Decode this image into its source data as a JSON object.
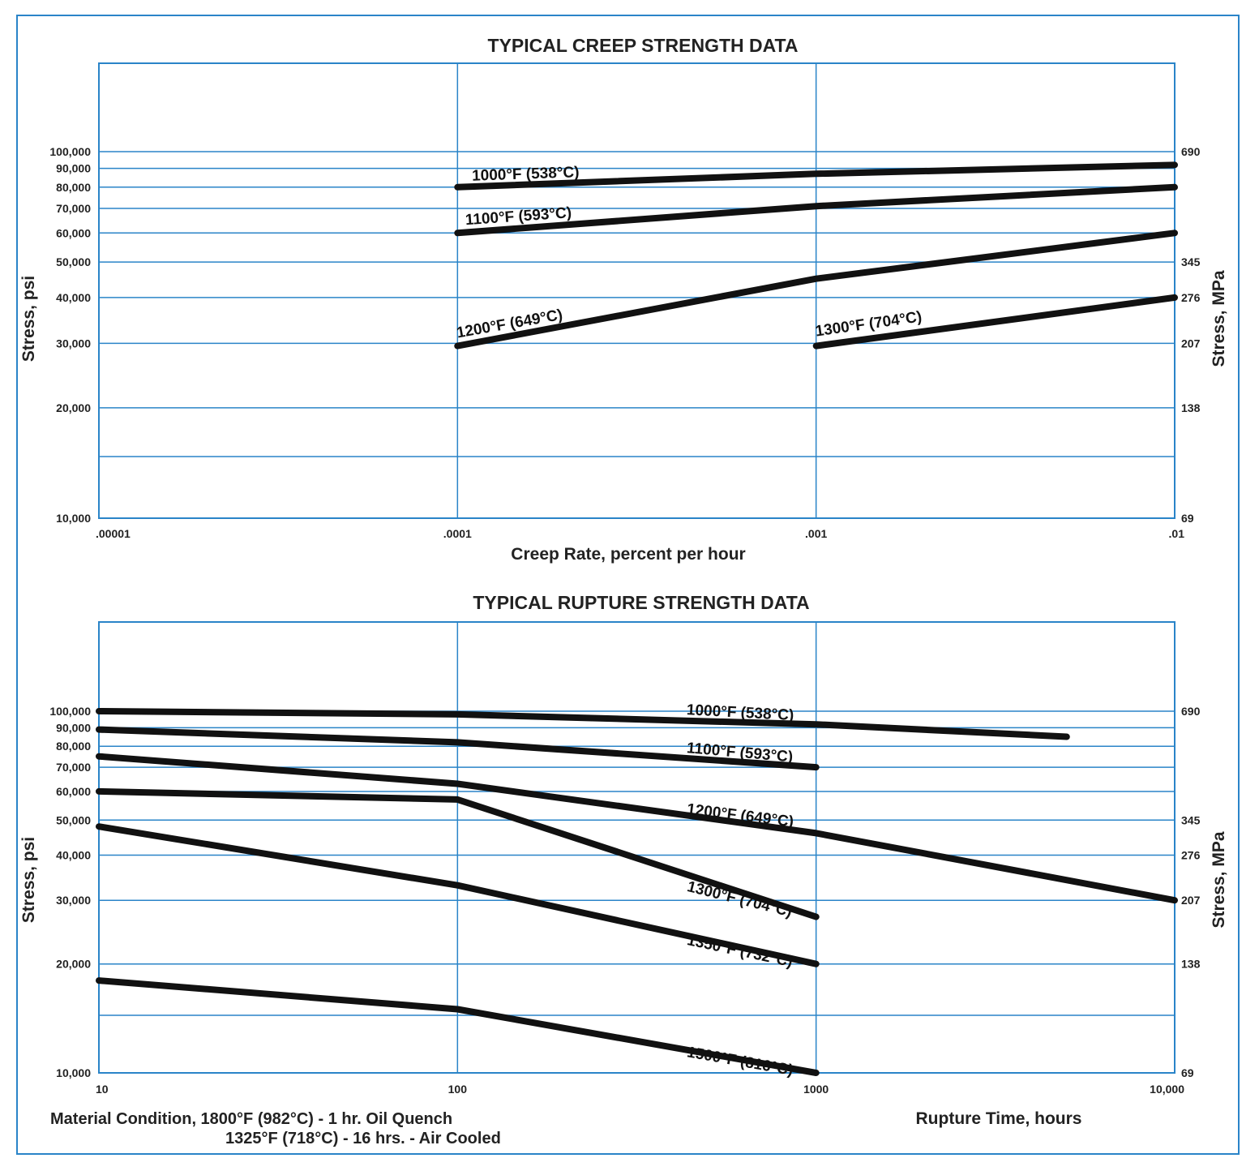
{
  "accent_color": "#2a84c8",
  "curve_color": "#111111",
  "chart_data": [
    {
      "type": "line",
      "title": "TYPICAL CREEP STRENGTH DATA",
      "xlabel": "Creep Rate, percent per hour",
      "ylabel": "Stress, psi",
      "ylabel_right": "Stress, MPa",
      "x_scale": "log",
      "y_scale": "log",
      "xlim": [
        1e-05,
        0.01
      ],
      "ylim": [
        10000,
        100000
      ],
      "x_ticks": [
        {
          "value": 1e-05,
          "label": ".00001"
        },
        {
          "value": 0.0001,
          "label": ".0001"
        },
        {
          "value": 0.001,
          "label": ".001"
        },
        {
          "value": 0.01,
          "label": ".01"
        }
      ],
      "y_ticks_left": [
        {
          "value": 10000,
          "label": "10,000"
        },
        {
          "value": 20000,
          "label": "20,000"
        },
        {
          "value": 30000,
          "label": "30,000"
        },
        {
          "value": 40000,
          "label": "40,000"
        },
        {
          "value": 50000,
          "label": "50,000"
        },
        {
          "value": 60000,
          "label": "60,000"
        },
        {
          "value": 70000,
          "label": "70,000"
        },
        {
          "value": 80000,
          "label": "80,000"
        },
        {
          "value": 90000,
          "label": "90,000"
        },
        {
          "value": 100000,
          "label": "100,000"
        }
      ],
      "y_ticks_right": [
        {
          "value": 10000,
          "label": "69"
        },
        {
          "value": 20000,
          "label": "138"
        },
        {
          "value": 30000,
          "label": "207"
        },
        {
          "value": 40000,
          "label": "276"
        },
        {
          "value": 50000,
          "label": "345"
        },
        {
          "value": 100000,
          "label": "690"
        }
      ],
      "series": [
        {
          "name": "1000°F (538°C)",
          "points": [
            [
              0.0001,
              80000
            ],
            [
              0.001,
              87000
            ],
            [
              0.01,
              92000
            ]
          ]
        },
        {
          "name": "1100°F (593°C)",
          "points": [
            [
              0.0001,
              60000
            ],
            [
              0.001,
              71000
            ],
            [
              0.01,
              80000
            ]
          ]
        },
        {
          "name": "1200°F (649°C)",
          "points": [
            [
              0.0001,
              29500
            ],
            [
              0.001,
              45000
            ],
            [
              0.01,
              60000
            ]
          ]
        },
        {
          "name": "1300°F (704°C)",
          "points": [
            [
              0.001,
              29500
            ],
            [
              0.01,
              40000
            ]
          ]
        }
      ]
    },
    {
      "type": "line",
      "title": "TYPICAL RUPTURE STRENGTH DATA",
      "xlabel": "Rupture Time, hours",
      "ylabel": "Stress, psi",
      "ylabel_right": "Stress, MPa",
      "x_scale": "log",
      "y_scale": "log",
      "xlim": [
        10,
        10000
      ],
      "ylim": [
        10000,
        100000
      ],
      "x_ticks": [
        {
          "value": 10,
          "label": "10"
        },
        {
          "value": 100,
          "label": "100"
        },
        {
          "value": 1000,
          "label": "1000"
        },
        {
          "value": 10000,
          "label": "10,000"
        }
      ],
      "y_ticks_left": [
        {
          "value": 10000,
          "label": "10,000"
        },
        {
          "value": 20000,
          "label": "20,000"
        },
        {
          "value": 30000,
          "label": "30,000"
        },
        {
          "value": 40000,
          "label": "40,000"
        },
        {
          "value": 50000,
          "label": "50,000"
        },
        {
          "value": 60000,
          "label": "60,000"
        },
        {
          "value": 70000,
          "label": "70,000"
        },
        {
          "value": 80000,
          "label": "80,000"
        },
        {
          "value": 90000,
          "label": "90,000"
        },
        {
          "value": 100000,
          "label": "100,000"
        }
      ],
      "y_ticks_right": [
        {
          "value": 10000,
          "label": "69"
        },
        {
          "value": 20000,
          "label": "138"
        },
        {
          "value": 30000,
          "label": "207"
        },
        {
          "value": 40000,
          "label": "276"
        },
        {
          "value": 50000,
          "label": "345"
        },
        {
          "value": 100000,
          "label": "690"
        }
      ],
      "series": [
        {
          "name": "1000°F (538°C)",
          "points": [
            [
              10,
              100000
            ],
            [
              100,
              98000
            ],
            [
              1000,
              92000
            ],
            [
              5000,
              85000
            ]
          ]
        },
        {
          "name": "1100°F (593°C)",
          "points": [
            [
              10,
              89000
            ],
            [
              100,
              82000
            ],
            [
              1000,
              70000
            ]
          ]
        },
        {
          "name": "1200°F (649°C)",
          "points": [
            [
              10,
              75000
            ],
            [
              100,
              63000
            ],
            [
              1000,
              46000
            ],
            [
              10000,
              30000
            ]
          ]
        },
        {
          "name": "1300°F (704°C)",
          "points": [
            [
              10,
              60000
            ],
            [
              100,
              57000
            ],
            [
              1000,
              27000
            ]
          ]
        },
        {
          "name": "1350°F (732°C)",
          "points": [
            [
              10,
              48000
            ],
            [
              100,
              33000
            ],
            [
              1000,
              20000
            ]
          ]
        },
        {
          "name": "1500°F (816°C)",
          "points": [
            [
              10,
              18000
            ],
            [
              100,
              15000
            ],
            [
              1000,
              10000
            ]
          ]
        }
      ]
    }
  ],
  "material_condition": {
    "line1": "Material Condition, 1800°F (982°C) - 1 hr. Oil Quench",
    "line2": "1325°F (718°C) - 16 hrs. - Air Cooled"
  }
}
